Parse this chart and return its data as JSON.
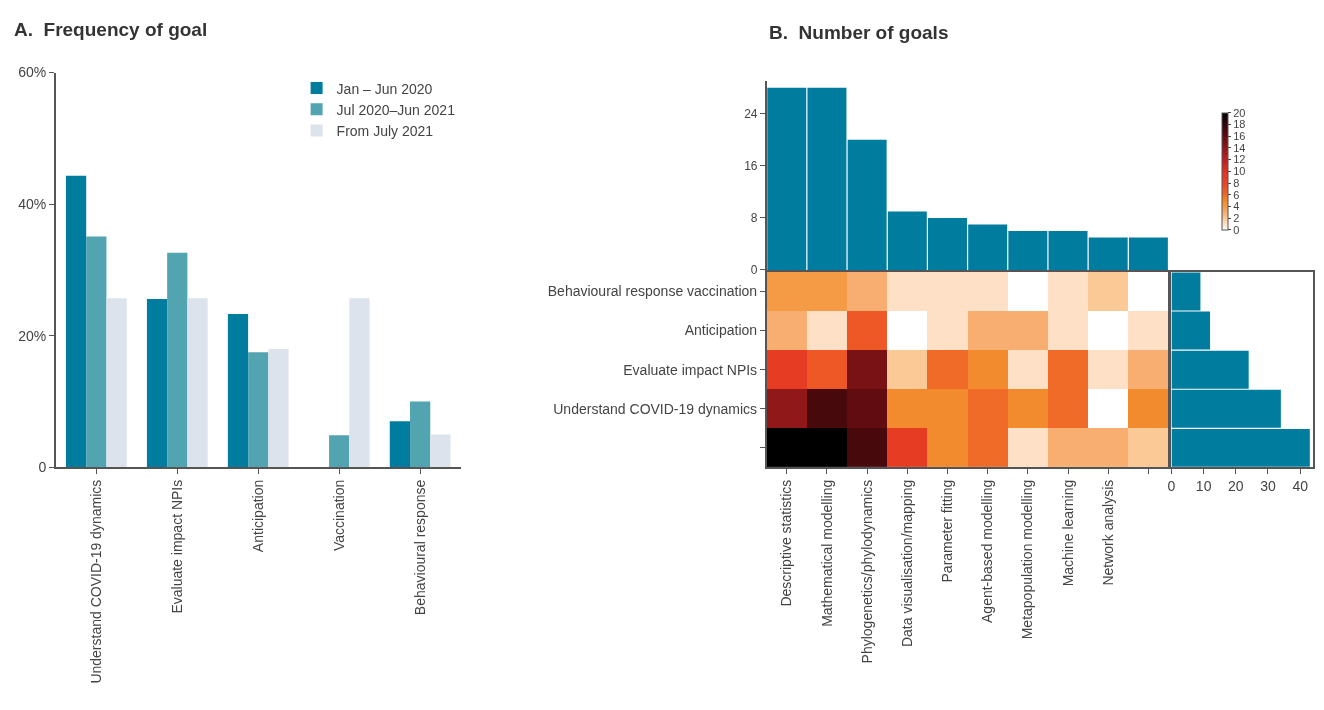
{
  "chart_data": [
    {
      "type": "bar",
      "title": "A.  Frequency of goal",
      "categories": [
        "Understand COVID-19 dynamics",
        "Evaluate impact NPIs",
        "Anticipation",
        "Vaccination",
        "Behavioural response"
      ],
      "series": [
        {
          "name": "Jan – Jun 2020",
          "color": "#007c9e",
          "values": [
            44.3,
            25.6,
            23.3,
            0,
            7.0
          ]
        },
        {
          "name": "Jul 2020–Jun 2021",
          "color": "#52a4b0",
          "values": [
            35.1,
            32.6,
            17.5,
            4.9,
            10.0
          ]
        },
        {
          "name": "From July 2021",
          "color": "#dce3ec",
          "values": [
            25.7,
            25.7,
            18.0,
            25.7,
            5.0
          ]
        }
      ],
      "ylim": [
        0,
        60
      ],
      "yticks": [
        {
          "value": 0,
          "label": "0"
        },
        {
          "value": 20,
          "label": "20%"
        },
        {
          "value": 40,
          "label": "40%"
        },
        {
          "value": 60,
          "label": "60%"
        }
      ],
      "legend": "top right"
    },
    {
      "type": "bar",
      "title": "B.  Number of goals",
      "categories": [
        null,
        null,
        null,
        null,
        null,
        null,
        null,
        null,
        null,
        null
      ],
      "values": [
        28,
        28,
        20,
        9,
        8,
        7,
        6,
        6,
        5,
        5
      ],
      "color": "#007c9e",
      "ylim": [
        0,
        29
      ],
      "yticks": [
        0,
        8,
        16,
        24
      ],
      "tick_labels": "y"
    },
    {
      "type": "heatmap",
      "categories": [
        "Descriptive statistics",
        "Mathematical modelling",
        "Phylogenetics/phylodynamics",
        "Data visualisation/mapping",
        "Parameter fitting",
        "Agent-based modelling",
        "Metapopulation modelling",
        "Machine learning",
        "Network analysis",
        null
      ],
      "y_categories": [
        "Behavioural response vaccination",
        "Anticipation",
        "Evaluate impact NPIs",
        "Understand COVID-19 dynamics",
        null
      ],
      "cells": [
        [
          4,
          4,
          3,
          1,
          1,
          1,
          0,
          1,
          2,
          0
        ],
        [
          3,
          1,
          7,
          0,
          1,
          3,
          3,
          1,
          0,
          1
        ],
        [
          9,
          7,
          15,
          2,
          6,
          5,
          1,
          6,
          1,
          3
        ],
        [
          14,
          17,
          16,
          5,
          5,
          6,
          5,
          6,
          0,
          5
        ],
        [
          20,
          20,
          17,
          9,
          5,
          6,
          1,
          3,
          3,
          2
        ]
      ],
      "clim": [
        0,
        20
      ],
      "cticks": [
        0,
        2,
        4,
        6,
        8,
        10,
        12,
        14,
        16,
        18,
        20
      ]
    },
    {
      "type": "bar",
      "orientation": "horizontal",
      "categories": [
        null,
        null,
        null,
        null,
        null
      ],
      "values": [
        9,
        12,
        24,
        34,
        43
      ],
      "color": "#007c9e",
      "xlim": [
        0,
        44
      ],
      "xticks": [
        0,
        10,
        20,
        30,
        40
      ],
      "tick_labels": "x"
    }
  ]
}
